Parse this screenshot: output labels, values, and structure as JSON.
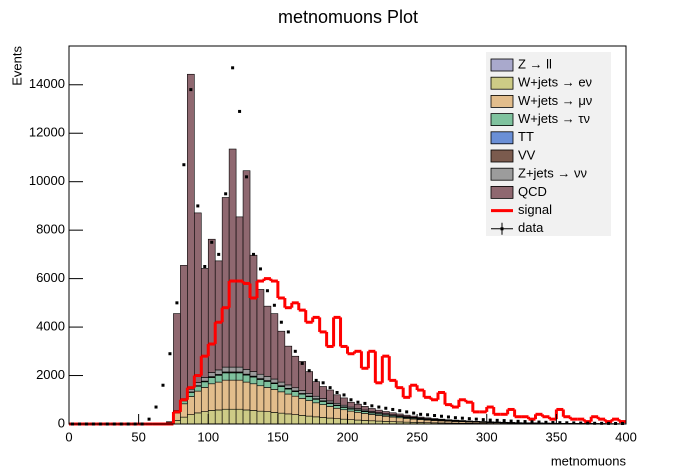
{
  "chart_data": {
    "type": "stacked-histogram",
    "title": "metnomuons Plot",
    "x_label": "metnomuons",
    "y_label": "Events",
    "bins": [
      0,
      5,
      10,
      15,
      20,
      25,
      30,
      35,
      40,
      45,
      50,
      55,
      60,
      65,
      70,
      75,
      80,
      85,
      90,
      95,
      100,
      105,
      110,
      115,
      120,
      125,
      130,
      135,
      140,
      145,
      150,
      155,
      160,
      165,
      170,
      175,
      180,
      185,
      190,
      195,
      200,
      205,
      210,
      215,
      220,
      225,
      230,
      235,
      240,
      245,
      250,
      255,
      260,
      265,
      270,
      275,
      280,
      285,
      290,
      295,
      300,
      305,
      310,
      315,
      320,
      325,
      330,
      335,
      340,
      345,
      350,
      355,
      360,
      365,
      370,
      375,
      380,
      385,
      390,
      395,
      400
    ],
    "xlim": [
      0,
      400
    ],
    "xticks": [
      0,
      50,
      100,
      150,
      200,
      250,
      300,
      350,
      400
    ],
    "ylim": [
      0,
      15600
    ],
    "yticks": [
      0,
      2000,
      4000,
      6000,
      8000,
      10000,
      12000,
      14000
    ],
    "stacked": true,
    "series": [
      {
        "name": "Z → ll",
        "color": "#a9a9cc",
        "values": [
          0,
          0,
          0,
          0,
          0,
          0,
          0,
          0,
          0,
          0,
          0,
          0,
          0,
          0,
          0,
          2,
          4,
          6,
          8,
          10,
          10,
          10,
          10,
          10,
          10,
          10,
          10,
          9,
          9,
          8,
          8,
          7,
          7,
          6,
          6,
          5,
          5,
          5,
          4,
          4,
          4,
          3,
          3,
          3,
          3,
          2,
          2,
          2,
          2,
          2,
          2,
          1,
          1,
          1,
          1,
          1,
          1,
          1,
          1,
          1,
          1,
          1,
          1,
          0,
          0,
          0,
          0,
          0,
          0,
          0,
          0,
          0,
          0,
          0,
          0,
          0,
          0,
          0,
          0,
          0
        ]
      },
      {
        "name": "W+jets → eν",
        "color": "#cdcb86",
        "values": [
          0,
          0,
          0,
          0,
          0,
          0,
          0,
          0,
          0,
          0,
          0,
          0,
          0,
          0,
          30,
          150,
          280,
          380,
          450,
          500,
          550,
          570,
          600,
          600,
          600,
          570,
          550,
          520,
          500,
          470,
          440,
          410,
          380,
          350,
          320,
          290,
          265,
          240,
          215,
          195,
          175,
          160,
          145,
          130,
          118,
          107,
          95,
          85,
          75,
          68,
          60,
          54,
          48,
          43,
          38,
          34,
          31,
          27,
          24,
          22,
          19,
          17,
          15,
          14,
          12,
          11,
          10,
          9,
          8,
          7,
          6,
          6,
          5,
          4,
          4,
          3,
          3,
          3,
          2,
          2
        ]
      },
      {
        "name": "W+jets → μν",
        "color": "#e2bd8c",
        "values": [
          0,
          0,
          0,
          0,
          0,
          0,
          0,
          0,
          0,
          0,
          0,
          0,
          0,
          0,
          50,
          300,
          550,
          750,
          900,
          1000,
          1100,
          1150,
          1200,
          1200,
          1200,
          1150,
          1100,
          1050,
          1000,
          950,
          880,
          820,
          760,
          700,
          640,
          580,
          530,
          480,
          430,
          390,
          350,
          320,
          290,
          260,
          235,
          210,
          190,
          170,
          150,
          135,
          120,
          108,
          96,
          86,
          77,
          69,
          62,
          55,
          49,
          44,
          39,
          35,
          31,
          28,
          25,
          22,
          20,
          18,
          16,
          14,
          12,
          11,
          10,
          9,
          8,
          7,
          6,
          5,
          5,
          4
        ]
      },
      {
        "name": "W+jets → τν",
        "color": "#7fc29e",
        "values": [
          0,
          0,
          0,
          0,
          0,
          0,
          0,
          0,
          0,
          0,
          0,
          0,
          0,
          0,
          10,
          60,
          120,
          170,
          200,
          230,
          260,
          280,
          300,
          300,
          300,
          290,
          280,
          260,
          250,
          235,
          220,
          205,
          190,
          175,
          160,
          145,
          132,
          120,
          108,
          97,
          88,
          80,
          72,
          65,
          59,
          53,
          48,
          43,
          38,
          34,
          30,
          27,
          24,
          21,
          19,
          17,
          15,
          14,
          12,
          11,
          10,
          9,
          8,
          7,
          6,
          6,
          5,
          5,
          4,
          4,
          3,
          3,
          3,
          2,
          2,
          2,
          2,
          1,
          1,
          1
        ]
      },
      {
        "name": "TT",
        "color": "#6a8fd6",
        "values": [
          0,
          0,
          0,
          0,
          0,
          0,
          0,
          0,
          0,
          0,
          0,
          0,
          0,
          0,
          0,
          1,
          2,
          3,
          4,
          5,
          6,
          7,
          8,
          8,
          8,
          8,
          8,
          8,
          8,
          8,
          8,
          8,
          8,
          8,
          7,
          7,
          7,
          7,
          6,
          6,
          6,
          6,
          5,
          5,
          5,
          5,
          5,
          4,
          4,
          4,
          4,
          3,
          3,
          3,
          3,
          3,
          3,
          2,
          2,
          2,
          2,
          2,
          2,
          2,
          1,
          1,
          1,
          1,
          1,
          1,
          1,
          1,
          1,
          1,
          1,
          1,
          1,
          1,
          1,
          1
        ]
      },
      {
        "name": "VV",
        "color": "#7b5b4e",
        "values": [
          0,
          0,
          0,
          0,
          0,
          0,
          0,
          0,
          0,
          0,
          0,
          0,
          0,
          0,
          0,
          5,
          10,
          15,
          20,
          25,
          30,
          30,
          30,
          30,
          30,
          30,
          28,
          27,
          26,
          25,
          24,
          23,
          22,
          21,
          20,
          19,
          18,
          17,
          16,
          15,
          14,
          13,
          12,
          11,
          10,
          10,
          9,
          9,
          8,
          8,
          7,
          7,
          6,
          6,
          5,
          5,
          5,
          4,
          4,
          4,
          3,
          3,
          3,
          3,
          2,
          2,
          2,
          2,
          2,
          2,
          1,
          1,
          1,
          1,
          1,
          1,
          1,
          1,
          1,
          1
        ]
      },
      {
        "name": "Z+jets → νν",
        "color": "#9c9c9c",
        "values": [
          0,
          0,
          0,
          0,
          0,
          0,
          0,
          0,
          0,
          0,
          0,
          0,
          0,
          0,
          5,
          40,
          80,
          110,
          130,
          150,
          170,
          185,
          200,
          200,
          200,
          195,
          190,
          180,
          170,
          160,
          150,
          140,
          130,
          120,
          110,
          100,
          92,
          84,
          76,
          69,
          62,
          56,
          51,
          46,
          42,
          38,
          34,
          31,
          28,
          25,
          22,
          20,
          18,
          16,
          14,
          13,
          12,
          11,
          10,
          9,
          8,
          7,
          6,
          5,
          5,
          4,
          4,
          4,
          3,
          3,
          3,
          2,
          2,
          2,
          2,
          1,
          1,
          1,
          1,
          1
        ]
      },
      {
        "name": "QCD",
        "color": "#8f6870",
        "values": [
          0,
          0,
          0,
          0,
          0,
          0,
          0,
          0,
          0,
          0,
          0,
          0,
          0,
          0,
          0,
          4000,
          5500,
          13000,
          7000,
          4500,
          5500,
          4500,
          7000,
          9000,
          6200,
          8200,
          4800,
          3500,
          2900,
          2700,
          2100,
          1600,
          1300,
          1200,
          900,
          600,
          500,
          450,
          350,
          300,
          200,
          180,
          150,
          120,
          100,
          90,
          80,
          70,
          60,
          50,
          40,
          35,
          30,
          25,
          20,
          18,
          15,
          12,
          10,
          9,
          8,
          7,
          6,
          5,
          5,
          4,
          4,
          3,
          3,
          3,
          2,
          2,
          2,
          2,
          1,
          1,
          1,
          1,
          1,
          1
        ]
      }
    ],
    "signal": {
      "name": "signal",
      "color": "#ff0000",
      "values": [
        0,
        0,
        0,
        0,
        0,
        0,
        0,
        0,
        0,
        0,
        0,
        0,
        0,
        0,
        0,
        500,
        1000,
        1500,
        2000,
        2800,
        3300,
        4200,
        4800,
        5900,
        5900,
        5800,
        5200,
        5900,
        6000,
        5900,
        5200,
        4800,
        5000,
        4700,
        4200,
        4400,
        3800,
        3200,
        4400,
        3200,
        2900,
        3000,
        2300,
        3000,
        1700,
        2800,
        1800,
        1500,
        1100,
        1600,
        1400,
        1100,
        1000,
        1300,
        800,
        700,
        1000,
        900,
        500,
        500,
        700,
        400,
        400,
        600,
        300,
        300,
        200,
        400,
        300,
        200,
        600,
        300,
        200,
        200,
        100,
        300,
        200,
        100,
        200,
        100
      ]
    },
    "data": {
      "name": "data",
      "color": "#000000",
      "values": [
        0,
        0,
        0,
        0,
        0,
        0,
        0,
        0,
        0,
        0,
        0,
        200,
        700,
        1600,
        2900,
        5000,
        10700,
        13800,
        9000,
        6500,
        7500,
        7000,
        9500,
        14700,
        12900,
        10200,
        7000,
        6400,
        5500,
        4900,
        4200,
        3800,
        3000,
        2500,
        2200,
        1800,
        1700,
        1500,
        1300,
        1200,
        1000,
        900,
        850,
        750,
        700,
        650,
        600,
        550,
        500,
        450,
        400,
        380,
        350,
        320,
        290,
        260,
        240,
        220,
        200,
        180,
        160,
        150,
        140,
        120,
        110,
        100,
        90,
        80,
        70,
        60,
        55,
        50,
        45,
        40,
        35,
        30,
        28,
        25,
        22,
        20
      ]
    },
    "legend": "top-right"
  }
}
